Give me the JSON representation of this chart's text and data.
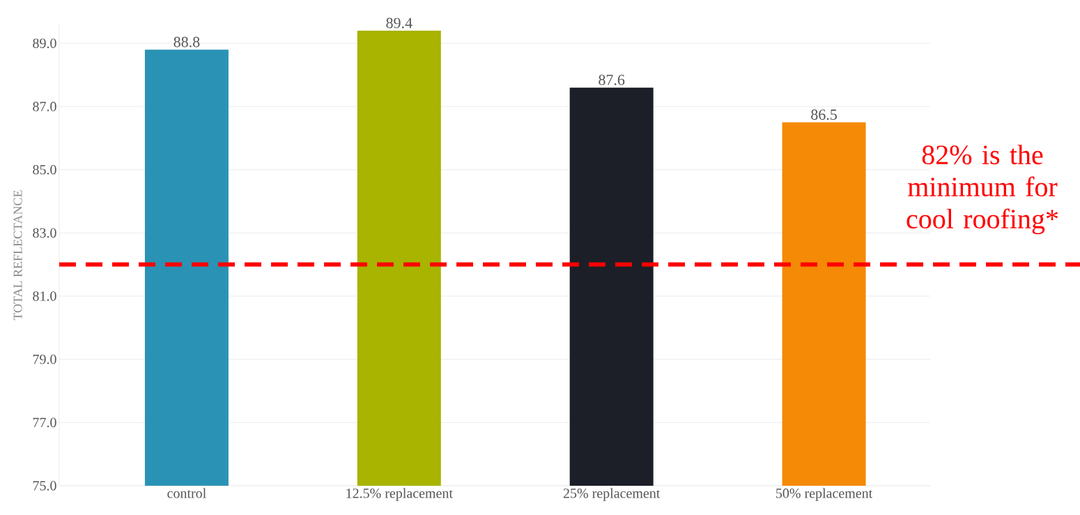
{
  "chart_data": {
    "type": "bar",
    "ylabel": "TOTAL REFLECTANCE",
    "categories": [
      "control",
      "12.5% replacement",
      "25% replacement",
      "50% replacement"
    ],
    "values": [
      88.8,
      89.4,
      87.6,
      86.5
    ],
    "colors": [
      "#2a93b5",
      "#a8b400",
      "#1c1f27",
      "#f58a07"
    ],
    "yticks": [
      {
        "value": 75,
        "label": "75.0"
      },
      {
        "value": 77,
        "label": "77.0"
      },
      {
        "value": 79,
        "label": "79.0"
      },
      {
        "value": 81,
        "label": "81.0"
      },
      {
        "value": 83,
        "label": "83.0"
      },
      {
        "value": 85,
        "label": "85.0"
      },
      {
        "value": 87,
        "label": "87.0"
      },
      {
        "value": 89,
        "label": "89.0"
      }
    ],
    "ylim": [
      75,
      89.6
    ],
    "grid": "y",
    "data_labels": true,
    "ref_lines": [
      {
        "axis": "y",
        "value": 82,
        "label": "82% is the minimum for cool roofing*",
        "color": "#ff0000",
        "line_style": "dashed"
      }
    ]
  }
}
